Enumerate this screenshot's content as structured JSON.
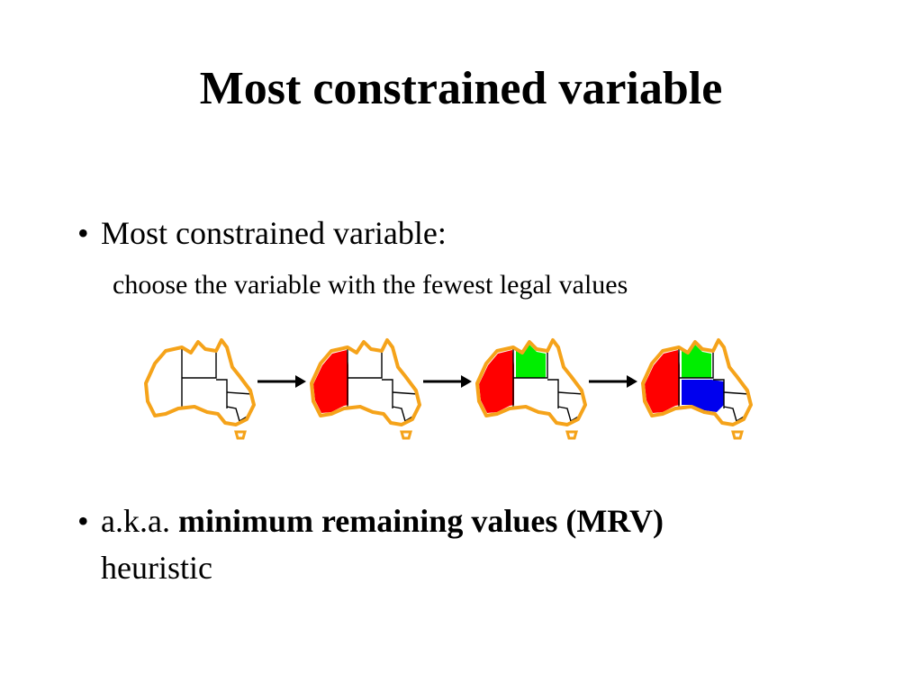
{
  "slide": {
    "title": "Most constrained variable",
    "bullet1": {
      "text": "Most constrained variable:",
      "sub": "choose the variable with the fewest legal values"
    },
    "bullet2": {
      "prefix": "a.k.a.",
      "bold": "minimum remaining values (MRV)",
      "continuation": "heuristic"
    },
    "bullet_char": "•"
  },
  "diagram": {
    "steps": [
      {
        "colored_regions": []
      },
      {
        "colored_regions": [
          {
            "region": "WA",
            "color": "red"
          }
        ]
      },
      {
        "colored_regions": [
          {
            "region": "WA",
            "color": "red"
          },
          {
            "region": "NT",
            "color": "green"
          }
        ]
      },
      {
        "colored_regions": [
          {
            "region": "WA",
            "color": "red"
          },
          {
            "region": "NT",
            "color": "green"
          },
          {
            "region": "SA",
            "color": "blue"
          }
        ]
      }
    ],
    "colors": {
      "outline": "#f5a31a",
      "red": "#ff0000",
      "green": "#00ee00",
      "blue": "#0000ee",
      "border": "#000000",
      "arrow": "#000000"
    }
  }
}
